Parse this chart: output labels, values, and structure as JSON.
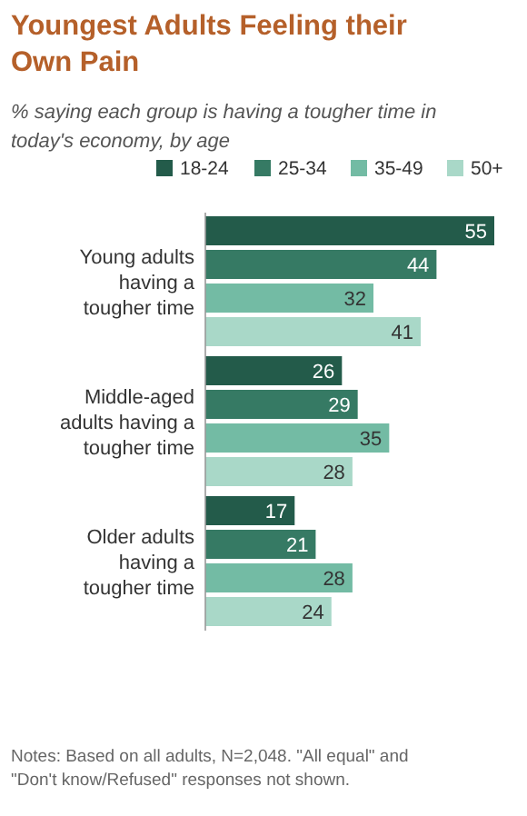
{
  "chart_data": {
    "type": "bar",
    "orientation": "horizontal",
    "title": "Youngest Adults Feeling their Own Pain",
    "subtitle": "% saying each group is having a tougher time in today's economy, by age",
    "categories": [
      "Young adults having a tougher time",
      "Middle-aged adults having a tougher time",
      "Older adults having a tougher time"
    ],
    "series": [
      {
        "name": "18-24",
        "color": "#235b4a",
        "values": [
          55,
          26,
          17
        ]
      },
      {
        "name": "25-34",
        "color": "#367a64",
        "values": [
          44,
          29,
          21
        ]
      },
      {
        "name": "35-49",
        "color": "#73bba4",
        "values": [
          32,
          35,
          28
        ]
      },
      {
        "name": "50+",
        "color": "#a9d8c8",
        "values": [
          41,
          28,
          24
        ]
      }
    ],
    "data_labels": true,
    "legend": "top",
    "grid": false,
    "annotations": [
      "Notes: Based on all adults, N=2,048. \"All equal\" and \"Don't know/Refused\" responses not shown."
    ]
  }
}
